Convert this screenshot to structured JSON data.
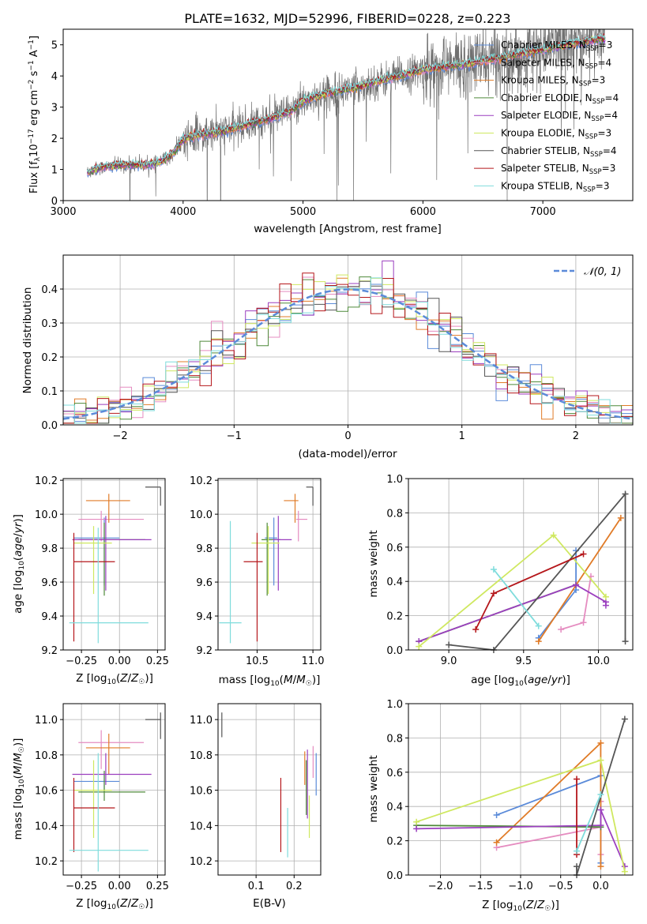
{
  "figure": {
    "title": "PLATE=1632, MJD=52996, FIBERID=0228, z=0.223"
  },
  "colors": {
    "chabrier_miles": "#5b8bd9",
    "salpeter_miles": "#e58cc0",
    "kroupa_miles": "#e07b27",
    "chabrier_elodie": "#4f8a3a",
    "salpeter_elodie": "#9b3fbf",
    "kroupa_elodie": "#cfe860",
    "chabrier_stelib": "#555555",
    "salpeter_stelib": "#b5171b",
    "kroupa_stelib": "#7fdcdc",
    "gaussian": "#5b8bd9"
  },
  "legend": {
    "chabrier_miles": "Chabrier MILES, N",
    "salpeter_miles": "Salpeter MILES, N",
    "kroupa_miles": "Kroupa MILES, N",
    "chabrier_elodie": "Chabrier ELODIE, N",
    "salpeter_elodie": "Salpeter ELODIE, N",
    "kroupa_elodie": "Kroupa ELODIE, N",
    "chabrier_stelib": "Chabrier STELIB, N",
    "salpeter_stelib": "Salpeter STELIB, N",
    "kroupa_stelib": "Kroupa STELIB, N",
    "nssp_sub": "SSP",
    "n3": "=3",
    "n4": "=4",
    "gaussian": "𝒩(0, 1)"
  },
  "chart_data": [
    {
      "type": "line",
      "panel": "spectrum",
      "xlabel": "wavelength [Angstrom, rest frame]",
      "ylabel": "Flux [f_λ 10^-17 erg cm^-2 s^-1 A^-1]",
      "xlim": [
        3000,
        7750
      ],
      "ylim": [
        0,
        5.5
      ],
      "xticks": [
        3000,
        4000,
        5000,
        6000,
        7000
      ],
      "yticks": [
        0,
        1,
        2,
        3,
        4,
        5
      ],
      "data_range": [
        3200,
        7520
      ],
      "model_continuum": {
        "x": [
          3200,
          3300,
          3500,
          3700,
          3800,
          3900,
          4000,
          4100,
          4300,
          4500,
          4700,
          4900,
          5000,
          5200,
          5400,
          5600,
          5800,
          6000,
          6200,
          6400,
          6600,
          6800,
          7000,
          7200,
          7500
        ],
        "y": [
          0.9,
          1.05,
          1.15,
          1.15,
          1.2,
          1.45,
          1.95,
          2.1,
          2.2,
          2.4,
          2.6,
          2.85,
          3.2,
          3.45,
          3.6,
          3.8,
          4.0,
          4.2,
          4.3,
          4.4,
          4.55,
          4.7,
          4.85,
          5.0,
          5.2
        ]
      },
      "series": [
        "Chabrier MILES",
        "Salpeter MILES",
        "Kroupa MILES",
        "Chabrier ELODIE",
        "Salpeter ELODIE",
        "Kroupa ELODIE",
        "Chabrier STELIB",
        "Salpeter STELIB",
        "Kroupa STELIB"
      ],
      "nssp": [
        3,
        4,
        3,
        4,
        4,
        3,
        4,
        3,
        3
      ],
      "grid": false,
      "legend_position": "right"
    },
    {
      "type": "histogram",
      "panel": "residuals",
      "xlabel": "(data-model)/error",
      "ylabel": "Normed distribution",
      "xlim": [
        -2.5,
        2.5
      ],
      "ylim": [
        0,
        0.5
      ],
      "xticks": [
        -2,
        -1,
        0,
        1,
        2
      ],
      "yticks": [
        0.0,
        0.1,
        0.2,
        0.3,
        0.4
      ],
      "bin_width": 0.1,
      "reference_curve": "standard normal N(0,1), dashed",
      "grid": true,
      "legend_position": "top-right"
    },
    {
      "type": "errorbar",
      "panel": "age-vs-Z",
      "xlabel": "Z [log10(Z/Z☉)]",
      "ylabel": "age [log10(age/yr)]",
      "xlim": [
        -0.37,
        0.3
      ],
      "ylim": [
        9.2,
        10.21
      ],
      "xticks": [
        -0.25,
        0.0,
        0.25
      ],
      "yticks": [
        9.2,
        9.4,
        9.6,
        9.8,
        10.0,
        10.2
      ],
      "points": [
        {
          "series": "Chabrier MILES",
          "x": -0.1,
          "xerr": [
            0.2,
            0.1
          ],
          "y": 9.86,
          "yerr": [
            0.28,
            0.12
          ]
        },
        {
          "series": "Salpeter MILES",
          "x": -0.12,
          "xerr": [
            0.15,
            0.28
          ],
          "y": 9.97,
          "yerr": [
            0.13,
            0.05
          ]
        },
        {
          "series": "Kroupa MILES",
          "x": -0.07,
          "xerr": [
            0.15,
            0.14
          ],
          "y": 10.08,
          "yerr": [
            0.13,
            0.04
          ]
        },
        {
          "series": "Chabrier ELODIE",
          "x": -0.1,
          "xerr": [
            0.17,
            0.27
          ],
          "y": 9.85,
          "yerr": [
            0.33,
            0.1
          ]
        },
        {
          "series": "Salpeter ELODIE",
          "x": -0.09,
          "xerr": [
            0.22,
            0.3
          ],
          "y": 9.85,
          "yerr": [
            0.3,
            0.14
          ]
        },
        {
          "series": "Kroupa ELODIE",
          "x": -0.17,
          "xerr": [
            0.13,
            0.12
          ],
          "y": 9.83,
          "yerr": [
            0.3,
            0.1
          ]
        },
        {
          "series": "Chabrier STELIB",
          "x": 0.27,
          "xerr": [
            0.1,
            0.0
          ],
          "y": 10.16,
          "yerr": [
            0.11,
            0.0
          ]
        },
        {
          "series": "Salpeter STELIB",
          "x": -0.3,
          "xerr": [
            0.0,
            0.27
          ],
          "y": 9.72,
          "yerr": [
            0.47,
            0.17
          ]
        },
        {
          "series": "Kroupa STELIB",
          "x": -0.14,
          "xerr": [
            0.19,
            0.33
          ],
          "y": 9.36,
          "yerr": [
            0.12,
            0.56
          ]
        }
      ]
    },
    {
      "type": "errorbar",
      "panel": "age-vs-mass",
      "xlabel": "mass [log10(M/M☉)]",
      "ylabel": "",
      "xlim": [
        10.15,
        11.07
      ],
      "ylim": [
        9.2,
        10.21
      ],
      "xticks": [
        10.5,
        11.0
      ],
      "yticks": [
        9.2,
        9.4,
        9.6,
        9.8,
        10.0,
        10.2
      ],
      "points": [
        {
          "series": "Chabrier MILES",
          "x": 10.65,
          "xerr": [
            0.08,
            0.03
          ],
          "y": 9.86,
          "yerr": [
            0.28,
            0.12
          ]
        },
        {
          "series": "Salpeter MILES",
          "x": 10.87,
          "xerr": [
            0.02,
            0.08
          ],
          "y": 9.97,
          "yerr": [
            0.13,
            0.05
          ]
        },
        {
          "series": "Kroupa MILES",
          "x": 10.84,
          "xerr": [
            0.1,
            0.03
          ],
          "y": 10.08,
          "yerr": [
            0.13,
            0.04
          ]
        },
        {
          "series": "Chabrier ELODIE",
          "x": 10.59,
          "xerr": [
            0.05,
            0.12
          ],
          "y": 9.85,
          "yerr": [
            0.33,
            0.1
          ]
        },
        {
          "series": "Salpeter ELODIE",
          "x": 10.69,
          "xerr": [
            0.05,
            0.12
          ],
          "y": 9.85,
          "yerr": [
            0.3,
            0.14
          ]
        },
        {
          "series": "Kroupa ELODIE",
          "x": 10.6,
          "xerr": [
            0.15,
            0.1
          ],
          "y": 9.83,
          "yerr": [
            0.3,
            0.1
          ]
        },
        {
          "series": "Chabrier STELIB",
          "x": 11.0,
          "xerr": [
            0.06,
            0.0
          ],
          "y": 10.16,
          "yerr": [
            0.11,
            0.0
          ]
        },
        {
          "series": "Salpeter STELIB",
          "x": 10.5,
          "xerr": [
            0.12,
            0.05
          ],
          "y": 9.72,
          "yerr": [
            0.47,
            0.17
          ]
        },
        {
          "series": "Kroupa STELIB",
          "x": 10.26,
          "xerr": [
            0.1,
            0.1
          ],
          "y": 9.36,
          "yerr": [
            0.12,
            0.6
          ]
        }
      ]
    },
    {
      "type": "line",
      "panel": "weight-vs-age",
      "xlabel": "age [log10(age/yr)]",
      "ylabel": "mass weight",
      "xlim": [
        8.73,
        10.23
      ],
      "ylim": [
        0,
        1.0
      ],
      "xticks": [
        9.0,
        9.5,
        10.0
      ],
      "yticks": [
        0.0,
        0.2,
        0.4,
        0.6,
        0.8,
        1.0
      ],
      "grid": true,
      "series": [
        {
          "name": "Chabrier MILES",
          "x": [
            9.6,
            9.85,
            9.85
          ],
          "y": [
            0.07,
            0.35,
            0.58
          ]
        },
        {
          "name": "Salpeter MILES",
          "x": [
            9.75,
            9.9,
            9.95
          ],
          "y": [
            0.12,
            0.16,
            0.43
          ]
        },
        {
          "name": "Kroupa MILES",
          "x": [
            9.6,
            10.15
          ],
          "y": [
            0.05,
            0.77
          ]
        },
        {
          "name": "Chabrier ELODIE",
          "x": [
            8.8,
            9.85
          ],
          "y": [
            0.05,
            0.38
          ]
        },
        {
          "name": "Salpeter ELODIE",
          "x": [
            8.8,
            9.85,
            10.05,
            10.05
          ],
          "y": [
            0.05,
            0.38,
            0.28,
            0.26
          ]
        },
        {
          "name": "Kroupa ELODIE",
          "x": [
            8.8,
            9.7,
            10.05
          ],
          "y": [
            0.02,
            0.67,
            0.31
          ]
        },
        {
          "name": "Chabrier STELIB",
          "x": [
            9.0,
            9.3,
            10.18,
            10.18
          ],
          "y": [
            0.03,
            0.0,
            0.91,
            0.05
          ]
        },
        {
          "name": "Salpeter STELIB",
          "x": [
            9.18,
            9.3,
            9.9
          ],
          "y": [
            0.12,
            0.33,
            0.56
          ]
        },
        {
          "name": "Kroupa STELIB",
          "x": [
            9.3,
            9.6
          ],
          "y": [
            0.47,
            0.14
          ]
        }
      ]
    },
    {
      "type": "errorbar",
      "panel": "mass-vs-Z",
      "xlabel": "Z [log10(Z/Z☉)]",
      "ylabel": "mass [log10(M/M☉)]",
      "xlim": [
        -0.37,
        0.3
      ],
      "ylim": [
        10.12,
        11.09
      ],
      "xticks": [
        -0.25,
        0.0,
        0.25
      ],
      "yticks": [
        10.2,
        10.4,
        10.6,
        10.8,
        11.0
      ],
      "points": [
        {
          "series": "Chabrier MILES",
          "x": -0.1,
          "xerr": [
            0.2,
            0.1
          ],
          "y": 10.65,
          "yerr": [
            0.05,
            0.05
          ]
        },
        {
          "series": "Salpeter MILES",
          "x": -0.12,
          "xerr": [
            0.15,
            0.28
          ],
          "y": 10.87,
          "yerr": [
            0.15,
            0.07
          ]
        },
        {
          "series": "Kroupa MILES",
          "x": -0.07,
          "xerr": [
            0.15,
            0.14
          ],
          "y": 10.84,
          "yerr": [
            0.15,
            0.08
          ]
        },
        {
          "series": "Chabrier ELODIE",
          "x": -0.1,
          "xerr": [
            0.17,
            0.27
          ],
          "y": 10.59,
          "yerr": [
            0.05,
            0.12
          ]
        },
        {
          "series": "Salpeter ELODIE",
          "x": -0.09,
          "xerr": [
            0.22,
            0.3
          ],
          "y": 10.69,
          "yerr": [
            0.06,
            0.12
          ]
        },
        {
          "series": "Kroupa ELODIE",
          "x": -0.17,
          "xerr": [
            0.13,
            0.12
          ],
          "y": 10.6,
          "yerr": [
            0.27,
            0.17
          ]
        },
        {
          "series": "Chabrier STELIB",
          "x": 0.27,
          "xerr": [
            0.1,
            0.0
          ],
          "y": 11.0,
          "yerr": [
            0.11,
            0.04
          ]
        },
        {
          "series": "Salpeter STELIB",
          "x": -0.3,
          "xerr": [
            0.0,
            0.27
          ],
          "y": 10.5,
          "yerr": [
            0.25,
            0.17
          ]
        },
        {
          "series": "Kroupa STELIB",
          "x": -0.14,
          "xerr": [
            0.19,
            0.33
          ],
          "y": 10.26,
          "yerr": [
            0.12,
            0.55
          ]
        }
      ]
    },
    {
      "type": "errorbar",
      "panel": "mass-vs-EBV",
      "xlabel": "E(B-V)",
      "ylabel": "",
      "xlim": [
        0.0,
        0.27
      ],
      "ylim": [
        10.12,
        11.09
      ],
      "xticks": [
        0.1,
        0.2
      ],
      "yticks": [
        10.2,
        10.4,
        10.6,
        10.8,
        11.0
      ],
      "points": [
        {
          "series": "Chabrier MILES",
          "x": 0.258,
          "yrange": [
            10.57,
            10.81
          ]
        },
        {
          "series": "Salpeter MILES",
          "x": 0.25,
          "yrange": [
            10.67,
            10.85
          ]
        },
        {
          "series": "Kroupa MILES",
          "x": 0.228,
          "yrange": [
            10.63,
            10.82
          ]
        },
        {
          "series": "Chabrier ELODIE",
          "x": 0.232,
          "yrange": [
            10.46,
            10.77
          ]
        },
        {
          "series": "Salpeter ELODIE",
          "x": 0.235,
          "yrange": [
            10.44,
            10.83
          ]
        },
        {
          "series": "Kroupa ELODIE",
          "x": 0.24,
          "yrange": [
            10.33,
            10.57
          ]
        },
        {
          "series": "Chabrier STELIB",
          "x": 0.01,
          "yrange": [
            10.9,
            11.04
          ]
        },
        {
          "series": "Salpeter STELIB",
          "x": 0.165,
          "yrange": [
            10.25,
            10.67
          ]
        },
        {
          "series": "Kroupa STELIB",
          "x": 0.183,
          "yrange": [
            10.22,
            10.5
          ]
        }
      ]
    },
    {
      "type": "line",
      "panel": "weight-vs-Z",
      "xlabel": "Z [log10(Z/Z☉)]",
      "ylabel": "mass weight",
      "xlim": [
        -2.4,
        0.4
      ],
      "ylim": [
        0,
        1.0
      ],
      "xticks": [
        -2.0,
        -1.5,
        -1.0,
        -0.5,
        0.0
      ],
      "yticks": [
        0.0,
        0.2,
        0.4,
        0.6,
        0.8,
        1.0
      ],
      "grid": true,
      "series": [
        {
          "name": "Chabrier MILES",
          "x": [
            -1.3,
            0.0,
            0.0
          ],
          "y": [
            0.35,
            0.58,
            0.07
          ]
        },
        {
          "name": "Salpeter MILES",
          "x": [
            -1.3,
            0.0,
            0.0,
            0.0
          ],
          "y": [
            0.16,
            0.28,
            0.43,
            0.12
          ]
        },
        {
          "name": "Kroupa MILES",
          "x": [
            -1.3,
            0.0,
            0.0
          ],
          "y": [
            0.19,
            0.77,
            0.05
          ]
        },
        {
          "name": "Chabrier ELODIE",
          "x": [
            -2.3,
            0.0
          ],
          "y": [
            0.29,
            0.28
          ]
        },
        {
          "name": "Salpeter ELODIE",
          "x": [
            -2.3,
            0.0,
            0.0,
            0.3
          ],
          "y": [
            0.27,
            0.29,
            0.38,
            0.05
          ]
        },
        {
          "name": "Kroupa ELODIE",
          "x": [
            -2.3,
            0.0,
            0.3
          ],
          "y": [
            0.31,
            0.67,
            0.02
          ]
        },
        {
          "name": "Chabrier STELIB",
          "x": [
            -0.3,
            -0.3,
            0.3
          ],
          "y": [
            0.05,
            0.0,
            0.91
          ]
        },
        {
          "name": "Salpeter STELIB",
          "x": [
            -0.3,
            -0.3
          ],
          "y": [
            0.56,
            0.12
          ]
        },
        {
          "name": "Kroupa STELIB",
          "x": [
            -0.3,
            0.0
          ],
          "y": [
            0.14,
            0.47
          ]
        }
      ]
    }
  ]
}
